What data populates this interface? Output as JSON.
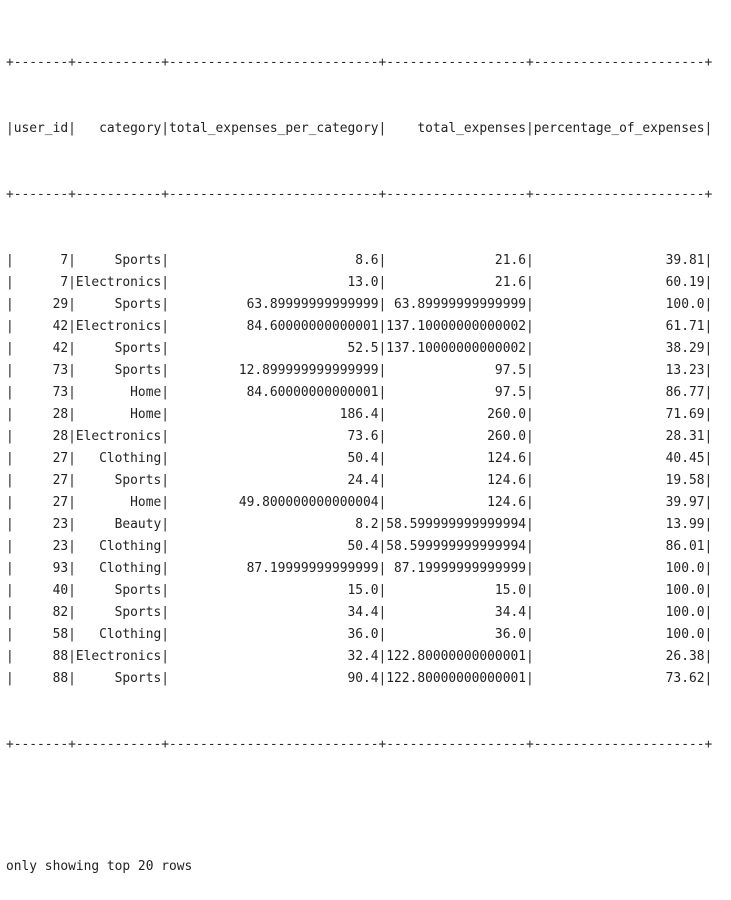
{
  "table": {
    "columns": [
      "user_id",
      "category",
      "total_expenses_per_category",
      "total_expenses",
      "percentage_of_expenses"
    ],
    "rows": [
      [
        "7",
        "Sports",
        "8.6",
        "21.6",
        "39.81"
      ],
      [
        "7",
        "Electronics",
        "13.0",
        "21.6",
        "60.19"
      ],
      [
        "29",
        "Sports",
        "63.89999999999999",
        "63.89999999999999",
        "100.0"
      ],
      [
        "42",
        "Electronics",
        "84.60000000000001",
        "137.10000000000002",
        "61.71"
      ],
      [
        "42",
        "Sports",
        "52.5",
        "137.10000000000002",
        "38.29"
      ],
      [
        "73",
        "Sports",
        "12.899999999999999",
        "97.5",
        "13.23"
      ],
      [
        "73",
        "Home",
        "84.60000000000001",
        "97.5",
        "86.77"
      ],
      [
        "28",
        "Home",
        "186.4",
        "260.0",
        "71.69"
      ],
      [
        "28",
        "Electronics",
        "73.6",
        "260.0",
        "28.31"
      ],
      [
        "27",
        "Clothing",
        "50.4",
        "124.6",
        "40.45"
      ],
      [
        "27",
        "Sports",
        "24.4",
        "124.6",
        "19.58"
      ],
      [
        "27",
        "Home",
        "49.800000000000004",
        "124.6",
        "39.97"
      ],
      [
        "23",
        "Beauty",
        "8.2",
        "58.599999999999994",
        "13.99"
      ],
      [
        "23",
        "Clothing",
        "50.4",
        "58.599999999999994",
        "86.01"
      ],
      [
        "93",
        "Clothing",
        "87.19999999999999",
        "87.19999999999999",
        "100.0"
      ],
      [
        "40",
        "Sports",
        "15.0",
        "15.0",
        "100.0"
      ],
      [
        "82",
        "Sports",
        "34.4",
        "34.4",
        "100.0"
      ],
      [
        "58",
        "Clothing",
        "36.0",
        "36.0",
        "100.0"
      ],
      [
        "88",
        "Electronics",
        "32.4",
        "122.80000000000001",
        "26.38"
      ],
      [
        "88",
        "Sports",
        "90.4",
        "122.80000000000001",
        "73.62"
      ]
    ]
  },
  "footer": "only showing top 20 rows"
}
